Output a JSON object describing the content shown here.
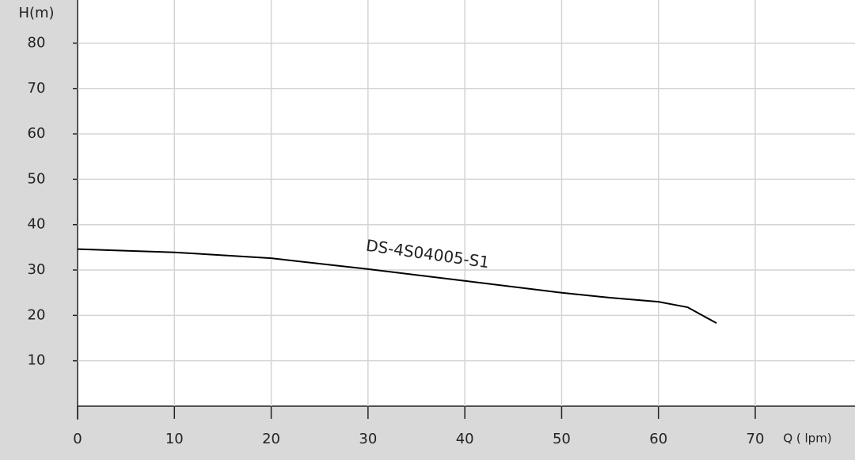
{
  "chart_data": {
    "type": "line",
    "x_label": "Q ( lpm)",
    "y_label": "H(m)",
    "x": [
      0,
      10,
      20,
      30,
      40,
      50,
      55,
      60,
      63,
      66
    ],
    "series": [
      {
        "name": "DS-4S04005-S1",
        "color": "#000000",
        "values": [
          34.6,
          33.9,
          32.6,
          30.2,
          27.6,
          25,
          23.9,
          23,
          21.8,
          18.3
        ]
      }
    ],
    "xlim": [
      0,
      80
    ],
    "ylim": [
      0,
      89.5
    ],
    "xticks": [
      0,
      10,
      20,
      30,
      40,
      50,
      60,
      70
    ],
    "yticks": [
      10,
      20,
      30,
      40,
      50,
      60,
      70,
      80
    ],
    "grid": true
  }
}
